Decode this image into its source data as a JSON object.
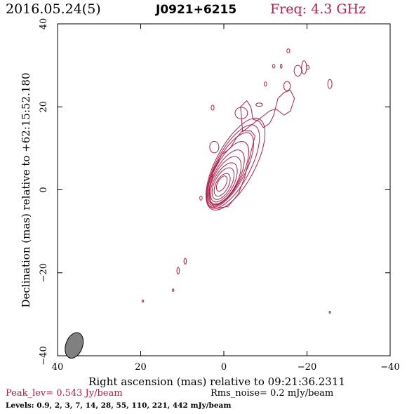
{
  "header": {
    "date": "2016.05.24(5)",
    "source": "J0921+6215",
    "freq": "Freq: 4.3 GHz"
  },
  "chart_data": {
    "type": "contour",
    "xlabel": "Right ascension (mas) relative to 09:21:36.2311",
    "ylabel": "Declination (mas) relative to +62:15:52.180",
    "xlim": [
      40,
      -40
    ],
    "ylim": [
      -40,
      40
    ],
    "xticks": [
      40,
      20,
      0,
      -20,
      -40
    ],
    "yticks": [
      -40,
      -20,
      0,
      20,
      40
    ],
    "xtick_labels": [
      "40",
      "20",
      "0",
      "−20",
      "−40"
    ],
    "ytick_labels": [
      "−40",
      "−20",
      "0",
      "20",
      "40"
    ],
    "contour_color": "#b0204a",
    "beam": {
      "x": 36,
      "y": -37.5,
      "major": 3.2,
      "minor": 2.0,
      "pa_deg": 20,
      "color": "#808080"
    },
    "core_contours": [
      {
        "cx": 0.5,
        "cy": 1.5,
        "rx": 1.0,
        "ry": 2.0
      },
      {
        "cx": 0.4,
        "cy": 1.2,
        "rx": 1.5,
        "ry": 3.0
      },
      {
        "cx": 0.2,
        "cy": 1.5,
        "rx": 2.0,
        "ry": 4.2
      },
      {
        "cx": 0.0,
        "cy": 1.8,
        "rx": 2.4,
        "ry": 5.2
      },
      {
        "cx": -0.3,
        "cy": 2.3,
        "rx": 2.8,
        "ry": 6.3
      },
      {
        "cx": -0.6,
        "cy": 3.0,
        "rx": 3.0,
        "ry": 7.3
      },
      {
        "cx": -1.0,
        "cy": 3.9,
        "rx": 3.3,
        "ry": 8.6
      },
      {
        "cx": -1.5,
        "cy": 4.8,
        "rx": 3.6,
        "ry": 10.0
      }
    ],
    "jet_contours": [
      {
        "cx": -2.2,
        "cy": 5.6,
        "rx": 4.1,
        "ry": 11.2
      },
      {
        "cx": -2.8,
        "cy": 6.2,
        "rx": 4.7,
        "ry": 12.3
      }
    ],
    "outer_contour": [
      [
        2,
        -4.5
      ],
      [
        -1,
        -4
      ],
      [
        -3.5,
        -1
      ],
      [
        -5,
        3
      ],
      [
        -6.5,
        9
      ],
      [
        -7.5,
        13
      ],
      [
        -6.5,
        14.2
      ],
      [
        -4.5,
        14.3
      ],
      [
        -3,
        12.5
      ],
      [
        -1.5,
        10
      ],
      [
        0.5,
        8.5
      ],
      [
        2.5,
        4.5
      ],
      [
        3.5,
        0
      ],
      [
        3.2,
        -3
      ]
    ],
    "components": [
      {
        "x": 2.3,
        "y": 10.3,
        "rx": 1.1,
        "ry": 1.4
      },
      {
        "x": -4.2,
        "y": 18.5,
        "rx": 1.5,
        "ry": 1.4
      },
      {
        "x": 2.7,
        "y": 19.8,
        "rx": 0.35,
        "ry": 0.6
      },
      {
        "x": -8.5,
        "y": 20.5,
        "rx": 0.8,
        "ry": 0.4
      },
      {
        "x": -10,
        "y": 25.5,
        "rx": 0.3,
        "ry": 0.5
      },
      {
        "x": -12,
        "y": 29.8,
        "rx": 0.3,
        "ry": 0.45
      },
      {
        "x": -13.8,
        "y": 29.8,
        "rx": 0.2,
        "ry": 0.5
      },
      {
        "x": -15.2,
        "y": 25.0,
        "rx": 0.8,
        "ry": 1.1
      },
      {
        "x": -17.8,
        "y": 28.7,
        "rx": 0.9,
        "ry": 1.3
      },
      {
        "x": -19.3,
        "y": 29.5,
        "rx": 0.6,
        "ry": 1.6
      },
      {
        "x": -20.2,
        "y": 29.5,
        "rx": 0.3,
        "ry": 0.5
      },
      {
        "x": -15.5,
        "y": 33.5,
        "rx": 0.35,
        "ry": 0.5
      },
      {
        "x": -25.5,
        "y": 25.5,
        "rx": 0.5,
        "ry": 1.1
      },
      {
        "x": 5.5,
        "y": -2.0,
        "rx": 0.3,
        "ry": 0.5
      },
      {
        "x": 11.0,
        "y": -19.5,
        "rx": 0.3,
        "ry": 0.8
      },
      {
        "x": 9.3,
        "y": -17.2,
        "rx": 0.3,
        "ry": 0.7
      },
      {
        "x": 12.2,
        "y": -24.2,
        "rx": 0.2,
        "ry": 0.3
      },
      {
        "x": 19.5,
        "y": -26.8,
        "rx": 0.1,
        "ry": 0.2
      },
      {
        "x": -25.5,
        "y": -29.5,
        "rx": 0.1,
        "ry": 0.2
      }
    ],
    "jet_extension": [
      [
        -4.5,
        14
      ],
      [
        -4.2,
        18
      ],
      [
        -4,
        20
      ],
      [
        -5.5,
        21.5
      ],
      [
        -6.5,
        20
      ],
      [
        -7,
        17
      ],
      [
        -8.5,
        16.5
      ],
      [
        -9.5,
        15
      ],
      [
        -11,
        16
      ],
      [
        -12,
        18
      ],
      [
        -13,
        22
      ],
      [
        -14.5,
        23.5
      ],
      [
        -16,
        24
      ],
      [
        -17,
        22
      ],
      [
        -16,
        19
      ],
      [
        -14.5,
        18
      ],
      [
        -12.5,
        19.5
      ],
      [
        -11,
        19
      ]
    ]
  },
  "footer": {
    "peak": "Peak_lev=  0.543 Jy/beam",
    "rms": "Rms_noise=  0.2 mJy/beam",
    "levels": "Levels: 0.9,    2,    3,    7,   14,   28,   55,  110,  221,  442  mJy/beam"
  }
}
